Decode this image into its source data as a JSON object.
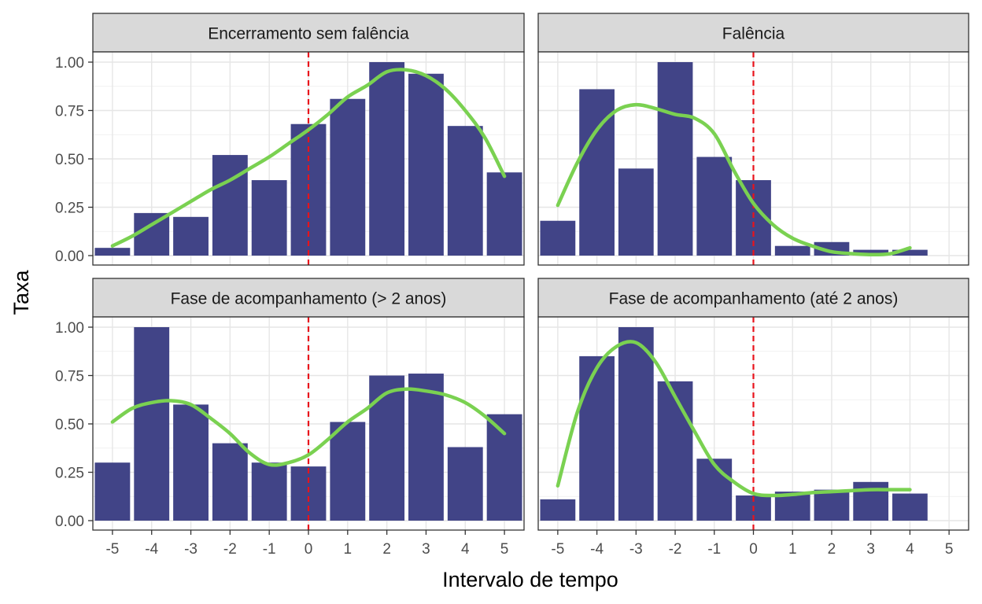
{
  "chart_data": {
    "type": "bar",
    "xlabel": "Intervalo de tempo",
    "ylabel": "Taxa",
    "x_ticks": [
      "-5",
      "-4",
      "-3",
      "-2",
      "-1",
      "0",
      "1",
      "2",
      "3",
      "4",
      "5"
    ],
    "x_tick_values": [
      -5,
      -4,
      -3,
      -2,
      -1,
      0,
      1,
      2,
      3,
      4,
      5
    ],
    "y_ticks": [
      "0.00",
      "0.25",
      "0.50",
      "0.75",
      "1.00"
    ],
    "y_tick_values": [
      0,
      0.25,
      0.5,
      0.75,
      1.0
    ],
    "xlim": [
      -5.5,
      5.5
    ],
    "ylim": [
      0,
      1.0
    ],
    "grid": true,
    "reference_line": {
      "x": 0,
      "style": "dashed",
      "color": "#e8131b"
    },
    "colors": {
      "bar": "#414487",
      "smooth": "#7ad151",
      "strip_fill": "#d9d9d9"
    },
    "panels": [
      {
        "title": "Encerramento sem falência",
        "x": [
          -5,
          -4,
          -3,
          -2,
          -1,
          0,
          1,
          2,
          3,
          4,
          5
        ],
        "values": [
          0.04,
          0.22,
          0.2,
          0.52,
          0.39,
          0.68,
          0.81,
          1.0,
          0.94,
          0.67,
          0.43
        ],
        "smooth_x": [
          -5,
          -4.5,
          -4,
          -3.5,
          -3,
          -2.5,
          -2,
          -1.5,
          -1,
          -0.5,
          0,
          0.5,
          1,
          1.5,
          2,
          2.5,
          3,
          3.5,
          4,
          4.5,
          5
        ],
        "smooth_y": [
          0.05,
          0.1,
          0.16,
          0.22,
          0.28,
          0.34,
          0.39,
          0.45,
          0.51,
          0.58,
          0.65,
          0.73,
          0.82,
          0.88,
          0.95,
          0.96,
          0.93,
          0.86,
          0.75,
          0.61,
          0.41
        ]
      },
      {
        "title": "Falência",
        "x": [
          -5,
          -4,
          -3,
          -2,
          -1,
          0,
          1,
          2,
          3,
          4
        ],
        "values": [
          0.18,
          0.86,
          0.45,
          1.0,
          0.51,
          0.39,
          0.05,
          0.07,
          0.03,
          0.03
        ],
        "smooth_x": [
          -5,
          -4.5,
          -4,
          -3.5,
          -3,
          -2.5,
          -2,
          -1.5,
          -1,
          -0.5,
          0,
          0.5,
          1,
          1.5,
          2,
          2.5,
          3,
          3.5,
          4
        ],
        "smooth_y": [
          0.26,
          0.48,
          0.65,
          0.75,
          0.78,
          0.76,
          0.73,
          0.71,
          0.63,
          0.44,
          0.27,
          0.16,
          0.09,
          0.05,
          0.02,
          0.01,
          0.005,
          0.01,
          0.04
        ]
      },
      {
        "title": "Fase de acompanhamento (> 2 anos)",
        "x": [
          -5,
          -4,
          -3,
          -2,
          -1,
          0,
          1,
          2,
          3,
          4,
          5
        ],
        "values": [
          0.3,
          1.0,
          0.6,
          0.4,
          0.3,
          0.28,
          0.51,
          0.75,
          0.76,
          0.38,
          0.55
        ],
        "smooth_x": [
          -5,
          -4.5,
          -4,
          -3.5,
          -3,
          -2.5,
          -2,
          -1.5,
          -1,
          -0.5,
          0,
          0.5,
          1,
          1.5,
          2,
          2.5,
          3,
          3.5,
          4,
          4.5,
          5
        ],
        "smooth_y": [
          0.51,
          0.58,
          0.61,
          0.62,
          0.6,
          0.53,
          0.45,
          0.35,
          0.29,
          0.3,
          0.34,
          0.42,
          0.51,
          0.58,
          0.66,
          0.68,
          0.67,
          0.65,
          0.61,
          0.54,
          0.45
        ]
      },
      {
        "title": "Fase de acompanhamento (até 2 anos)",
        "x": [
          -5,
          -4,
          -3,
          -2,
          -1,
          0,
          1,
          2,
          3,
          4
        ],
        "values": [
          0.11,
          0.85,
          1.0,
          0.72,
          0.32,
          0.13,
          0.15,
          0.16,
          0.2,
          0.14
        ],
        "smooth_x": [
          -5,
          -4.5,
          -4,
          -3.5,
          -3,
          -2.5,
          -2,
          -1.5,
          -1,
          -0.5,
          0,
          0.5,
          1,
          1.5,
          2,
          2.5,
          3,
          3.5,
          4
        ],
        "smooth_y": [
          0.18,
          0.56,
          0.79,
          0.9,
          0.92,
          0.82,
          0.64,
          0.46,
          0.29,
          0.2,
          0.14,
          0.13,
          0.135,
          0.145,
          0.15,
          0.155,
          0.16,
          0.16,
          0.16
        ]
      }
    ]
  }
}
